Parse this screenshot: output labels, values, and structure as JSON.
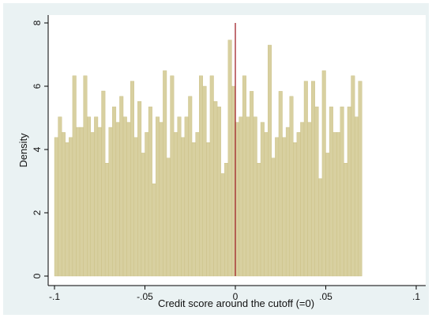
{
  "chart_data": {
    "type": "histogram",
    "title": "",
    "xlabel": "Credit score around the cutoff (=0)",
    "ylabel": "Density",
    "xlim": [
      -0.1,
      0.1
    ],
    "ylim": [
      0,
      8
    ],
    "x_ticks": [
      -0.1,
      -0.05,
      0,
      0.05,
      0.1
    ],
    "x_tick_labels": [
      "-.1",
      "-.05",
      "0",
      ".05",
      ".1"
    ],
    "y_ticks": [
      0,
      2,
      4,
      6,
      8
    ],
    "y_tick_labels": [
      "0",
      "2",
      "4",
      "6",
      "8"
    ],
    "cutoff": 0,
    "bar_color": "#d8d0a0",
    "bar_edge_color": "#c8bd80",
    "cutoff_line_color": "#a0242a",
    "grid": false,
    "bin_width": 0.002,
    "bin_start": -0.1,
    "values": [
      4.38,
      5.03,
      4.54,
      4.22,
      4.38,
      6.33,
      4.7,
      4.7,
      6.33,
      5.03,
      4.54,
      5.03,
      4.7,
      5.85,
      3.57,
      4.7,
      5.35,
      4.86,
      5.68,
      5.03,
      4.86,
      6.16,
      4.38,
      5.52,
      3.89,
      4.54,
      5.35,
      2.92,
      5.03,
      4.86,
      6.49,
      3.73,
      6.33,
      4.54,
      5.03,
      4.38,
      5.03,
      5.68,
      4.22,
      4.54,
      6.33,
      6.0,
      4.22,
      6.33,
      5.52,
      5.35,
      3.24,
      3.57,
      7.46,
      6.0,
      4.86,
      5.03,
      6.33,
      5.03,
      5.84,
      5.03,
      3.57,
      4.86,
      4.54,
      7.3,
      3.73,
      4.38,
      5.84,
      4.38,
      4.7,
      5.68,
      4.22,
      4.54,
      4.86,
      6.16,
      4.86,
      6.16,
      5.35,
      3.08,
      6.49,
      3.89,
      5.35,
      4.54,
      4.54,
      5.35,
      3.57,
      5.35,
      6.33,
      5.03,
      6.16
    ]
  }
}
